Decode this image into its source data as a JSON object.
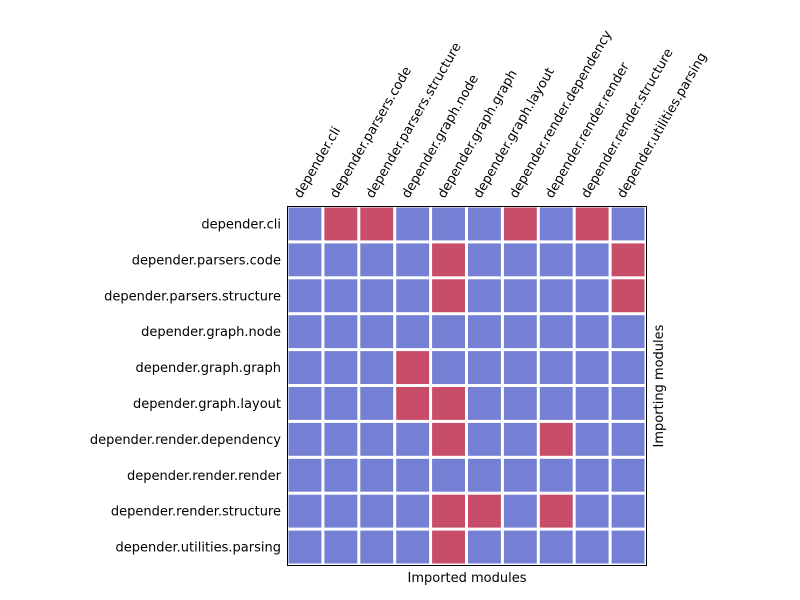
{
  "chart_data": {
    "type": "heatmap",
    "title": "",
    "xlabel": "Imported modules",
    "ylabel": "Importing modules",
    "grid": false,
    "columns": [
      "depender.cli",
      "depender.parsers.code",
      "depender.parsers.structure",
      "depender.graph.node",
      "depender.graph.graph",
      "depender.graph.layout",
      "depender.render.dependency",
      "depender.render.render",
      "depender.render.structure",
      "depender.utilities.parsing"
    ],
    "rows": [
      "depender.cli",
      "depender.parsers.code",
      "depender.parsers.structure",
      "depender.graph.node",
      "depender.graph.graph",
      "depender.graph.layout",
      "depender.render.dependency",
      "depender.render.render",
      "depender.render.structure",
      "depender.utilities.parsing"
    ],
    "values": [
      [
        0,
        1,
        1,
        0,
        0,
        0,
        1,
        0,
        1,
        0
      ],
      [
        0,
        0,
        0,
        0,
        1,
        0,
        0,
        0,
        0,
        1
      ],
      [
        0,
        0,
        0,
        0,
        1,
        0,
        0,
        0,
        0,
        1
      ],
      [
        0,
        0,
        0,
        0,
        0,
        0,
        0,
        0,
        0,
        0
      ],
      [
        0,
        0,
        0,
        1,
        0,
        0,
        0,
        0,
        0,
        0
      ],
      [
        0,
        0,
        0,
        1,
        1,
        0,
        0,
        0,
        0,
        0
      ],
      [
        0,
        0,
        0,
        0,
        1,
        0,
        0,
        1,
        0,
        0
      ],
      [
        0,
        0,
        0,
        0,
        0,
        0,
        0,
        0,
        0,
        0
      ],
      [
        0,
        0,
        0,
        0,
        1,
        1,
        0,
        1,
        0,
        0
      ],
      [
        0,
        0,
        0,
        0,
        1,
        0,
        0,
        0,
        0,
        0
      ]
    ],
    "colors": {
      "imported": "#c84d68",
      "not_imported": "#7580d4",
      "gap": "#ffffff",
      "frame": "#000000"
    }
  }
}
